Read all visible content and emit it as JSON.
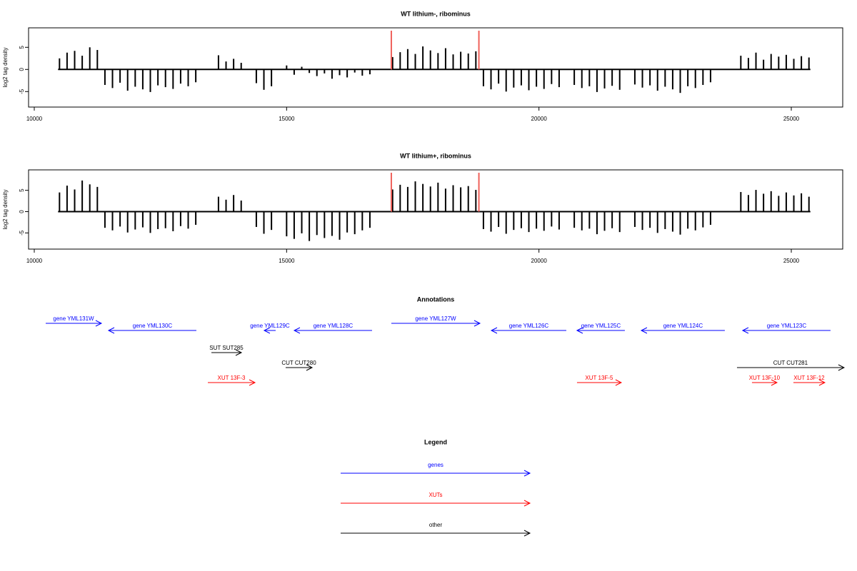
{
  "chart_data": [
    {
      "type": "bar",
      "title": "WT lithium-, ribominus",
      "ylabel": "log2 tag density",
      "color": "#000000",
      "xlim": [
        9887,
        26019
      ],
      "xticks": [
        10000,
        15000,
        20000,
        25000
      ],
      "ylim": [
        -8.5,
        9.4
      ],
      "yticks": [
        -5,
        0,
        5
      ],
      "markers": {
        "x": [
          17075,
          18810
        ],
        "color": "#f0605a"
      },
      "x": [
        10500,
        10650,
        10800,
        10950,
        11100,
        11250,
        11400,
        11550,
        11700,
        11850,
        12000,
        12150,
        12300,
        12450,
        12600,
        12750,
        12900,
        13050,
        13200,
        13350,
        13500,
        13650,
        13800,
        13950,
        14100,
        14250,
        14400,
        14550,
        14700,
        14850,
        15000,
        15150,
        15300,
        15450,
        15600,
        15750,
        15900,
        16050,
        16200,
        16350,
        16500,
        16650,
        16800,
        16950,
        17100,
        17250,
        17400,
        17550,
        17700,
        17850,
        18000,
        18150,
        18300,
        18450,
        18600,
        18750,
        18900,
        19050,
        19200,
        19350,
        19500,
        19650,
        19800,
        19950,
        20100,
        20250,
        20400,
        20550,
        20700,
        20850,
        21000,
        21150,
        21300,
        21450,
        21600,
        21750,
        21900,
        22050,
        22200,
        22350,
        22500,
        22650,
        22800,
        22950,
        23100,
        23250,
        23400,
        23550,
        23700,
        23850,
        24000,
        24150,
        24300,
        24450,
        24600,
        24750,
        24900,
        25050,
        25200,
        25350
      ],
      "values": [
        2.5,
        3.8,
        4.2,
        3.1,
        5.0,
        4.4,
        -3.5,
        -4.2,
        -3.0,
        -4.8,
        -3.9,
        -4.5,
        -5.1,
        -3.6,
        -4.0,
        -4.4,
        -3.2,
        -3.8,
        -2.9,
        0,
        0,
        3.2,
        1.8,
        2.4,
        1.5,
        0,
        -3.1,
        -4.6,
        -3.8,
        0,
        0.9,
        -1.2,
        0.6,
        -0.8,
        -1.5,
        -0.9,
        -2.1,
        -1.3,
        -1.8,
        -0.7,
        -1.4,
        -1.1,
        0,
        0,
        2.8,
        3.9,
        4.6,
        3.5,
        5.2,
        4.3,
        3.7,
        4.8,
        3.4,
        4.0,
        3.6,
        4.1,
        -3.8,
        -4.5,
        -3.2,
        -5.0,
        -4.1,
        -3.6,
        -4.7,
        -3.9,
        -4.4,
        -3.3,
        -4.0,
        0,
        -3.5,
        -4.2,
        -3.8,
        -5.1,
        -4.3,
        -3.7,
        -4.6,
        0,
        -3.4,
        -4.1,
        -3.6,
        -4.8,
        -3.9,
        -4.5,
        -5.3,
        -3.8,
        -4.2,
        -3.5,
        -2.9,
        0,
        0,
        0,
        3.1,
        2.6,
        3.8,
        2.2,
        3.5,
        2.9,
        3.3,
        2.4,
        3.0,
        2.7
      ]
    },
    {
      "type": "bar",
      "title": "WT lithium+, ribominus",
      "ylabel": "log2 tag density",
      "color": "#000000",
      "xlim": [
        9887,
        26019
      ],
      "xticks": [
        10000,
        15000,
        20000,
        25000
      ],
      "ylim": [
        -8.8,
        9.8
      ],
      "yticks": [
        -5,
        0,
        5
      ],
      "markers": {
        "x": [
          17075,
          18810
        ],
        "color": "#f0605a"
      },
      "x": [
        10500,
        10650,
        10800,
        10950,
        11100,
        11250,
        11400,
        11550,
        11700,
        11850,
        12000,
        12150,
        12300,
        12450,
        12600,
        12750,
        12900,
        13050,
        13200,
        13350,
        13500,
        13650,
        13800,
        13950,
        14100,
        14250,
        14400,
        14550,
        14700,
        14850,
        15000,
        15150,
        15300,
        15450,
        15600,
        15750,
        15900,
        16050,
        16200,
        16350,
        16500,
        16650,
        16800,
        16950,
        17100,
        17250,
        17400,
        17550,
        17700,
        17850,
        18000,
        18150,
        18300,
        18450,
        18600,
        18750,
        18900,
        19050,
        19200,
        19350,
        19500,
        19650,
        19800,
        19950,
        20100,
        20250,
        20400,
        20550,
        20700,
        20850,
        21000,
        21150,
        21300,
        21450,
        21600,
        21750,
        21900,
        22050,
        22200,
        22350,
        22500,
        22650,
        22800,
        22950,
        23100,
        23250,
        23400,
        23550,
        23700,
        23850,
        24000,
        24150,
        24300,
        24450,
        24600,
        24750,
        24900,
        25050,
        25200,
        25350
      ],
      "values": [
        4.5,
        6.1,
        5.2,
        7.3,
        6.4,
        5.8,
        -3.8,
        -4.4,
        -3.5,
        -4.9,
        -4.2,
        -3.7,
        -5.0,
        -4.1,
        -3.9,
        -4.6,
        -3.4,
        -4.0,
        -3.1,
        0,
        0,
        3.5,
        2.8,
        3.9,
        2.6,
        0,
        -3.6,
        -5.2,
        -4.3,
        0,
        -5.8,
        -6.4,
        -5.1,
        -6.9,
        -5.5,
        -6.2,
        -5.7,
        -6.6,
        -4.9,
        -5.3,
        -4.4,
        -3.8,
        0,
        0,
        5.2,
        6.3,
        5.8,
        7.1,
        6.5,
        5.9,
        6.8,
        5.4,
        6.2,
        5.7,
        6.0,
        5.1,
        -4.1,
        -4.7,
        -3.6,
        -5.2,
        -4.3,
        -3.9,
        -4.8,
        -4.0,
        -4.5,
        -3.5,
        -4.2,
        0,
        -3.8,
        -4.4,
        -4.0,
        -5.3,
        -4.5,
        -3.9,
        -4.8,
        0,
        -3.6,
        -4.3,
        -3.8,
        -5.0,
        -4.1,
        -4.7,
        -5.4,
        -4.0,
        -4.4,
        -3.7,
        -3.1,
        0,
        0,
        0,
        4.6,
        3.9,
        5.1,
        4.2,
        4.8,
        3.7,
        4.5,
        3.8,
        4.3,
        3.5
      ]
    }
  ],
  "annotations": {
    "title": "Annotations",
    "xlim": [
      9887,
      26019
    ],
    "tracks": [
      {
        "color": "#0000ff",
        "features": [
          {
            "label": "gene YML131W",
            "start": 10227,
            "end": 11330
          },
          {
            "label": "gene YML130C",
            "start": 13212,
            "end": 11472
          },
          {
            "label": "gene YML129C",
            "start": 14783,
            "end": 14556
          },
          {
            "label": "gene YML128C",
            "start": 16693,
            "end": 15151
          },
          {
            "label": "gene YML127W",
            "start": 17075,
            "end": 18830
          },
          {
            "label": "gene YML126C",
            "start": 20542,
            "end": 19057
          },
          {
            "label": "gene YML125C",
            "start": 21702,
            "end": 20754
          },
          {
            "label": "gene YML124C",
            "start": 23683,
            "end": 22028
          },
          {
            "label": "gene YML123C",
            "start": 25777,
            "end": 24037
          }
        ]
      },
      {
        "color": "#000000",
        "features": [
          {
            "label": "SUT SUT285",
            "start": 13510,
            "end": 14104
          }
        ]
      },
      {
        "color": "#000000",
        "features": [
          {
            "label": "CUT CUT280",
            "start": 14981,
            "end": 15505
          },
          {
            "label": "CUT CUT281",
            "start": 23924,
            "end": 26046
          }
        ]
      },
      {
        "color": "#ff0000",
        "features": [
          {
            "label": "XUT 13F-3",
            "start": 13439,
            "end": 14373
          },
          {
            "label": "XUT 13F-5",
            "start": 20754,
            "end": 21631
          },
          {
            "label": "XUT 13F-10",
            "start": 24221,
            "end": 24716
          },
          {
            "label": "XUT 13F-12",
            "start": 25042,
            "end": 25664
          }
        ]
      }
    ]
  },
  "legend": {
    "title": "Legend",
    "items": [
      {
        "label": "genes",
        "color": "#0000ff"
      },
      {
        "label": "XUTs",
        "color": "#ff0000"
      },
      {
        "label": "other",
        "color": "#000000"
      }
    ]
  }
}
